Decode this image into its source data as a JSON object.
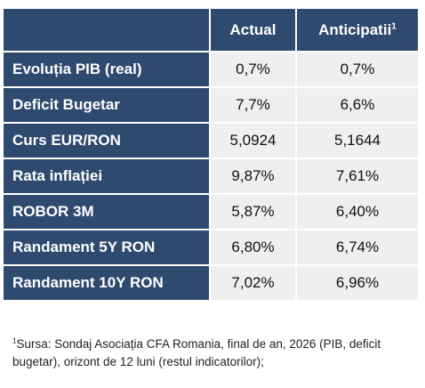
{
  "table": {
    "headers": {
      "actual": "Actual",
      "anticipated": "Anticipatii",
      "anticipated_marker": "1"
    },
    "rows": [
      {
        "label": "Evoluția PIB (real)",
        "actual": "0,7%",
        "anticipated": "0,7%"
      },
      {
        "label": "Deficit Bugetar",
        "actual": "7,7%",
        "anticipated": "6,6%"
      },
      {
        "label": "Curs EUR/RON",
        "actual": "5,0924",
        "anticipated": "5,1644"
      },
      {
        "label": "Rata inflației",
        "actual": "9,87%",
        "anticipated": "7,61%"
      },
      {
        "label": "ROBOR 3M",
        "actual": "5,87%",
        "anticipated": "6,40%"
      },
      {
        "label": "Randament 5Y RON",
        "actual": "6,80%",
        "anticipated": "6,74%"
      },
      {
        "label": "Randament 10Y RON",
        "actual": "7,02%",
        "anticipated": "6,96%"
      }
    ]
  },
  "footnote": {
    "marker": "1",
    "text": "Sursa: Sondaj Asociația CFA Romania, final de an, 2026 (PIB, deficit bugetar), orizont de 12 luni (restul indicatorilor);"
  },
  "colors": {
    "header_bg": "#2f4a6f",
    "cell_bg": "#efefef"
  }
}
